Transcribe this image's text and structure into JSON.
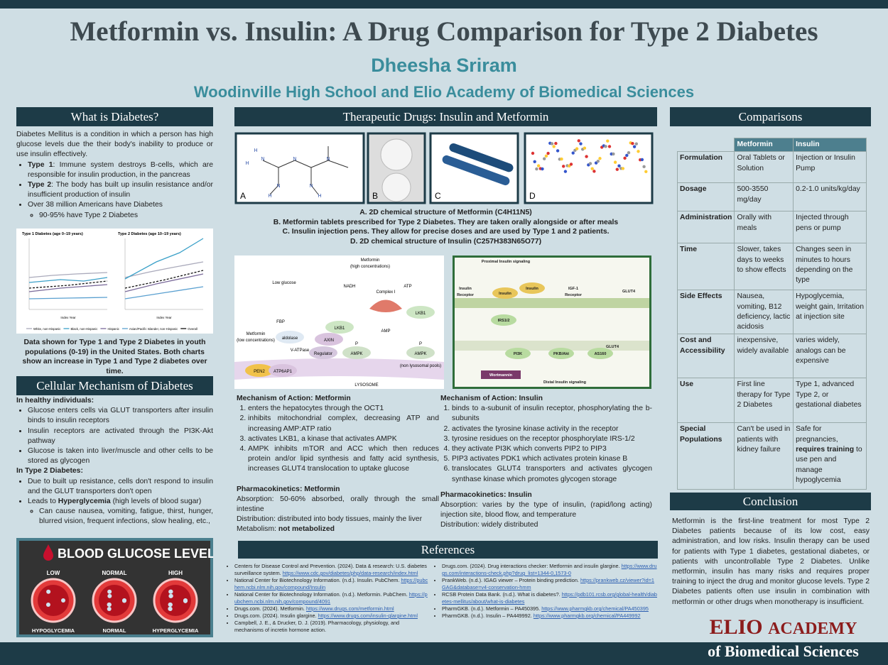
{
  "header": {
    "title": "Metformin vs. Insulin: A Drug Comparison for Type 2 Diabetes",
    "author": "Dheesha Sriram",
    "school": "Woodinville High School and Elio Academy of Biomedical Sciences"
  },
  "diabetes": {
    "heading": "What is Diabetes?",
    "intro": "Diabetes Mellitus is a condition in which a person has high glucose levels due the their body's inability to produce or use insulin effectively.",
    "bullets": [
      [
        {
          "b": "Type 1"
        },
        ": Immune system destroys B-cells, which are responsible for insulin production, in the pancreas"
      ],
      [
        {
          "b": "Type 2"
        },
        ": The body has built up insulin resistance and/or insufficient production of insulin"
      ],
      {
        "t": "Over 38 million Americans have Diabetes",
        "sub": [
          "90-95% have Type 2 Diabetes"
        ]
      }
    ],
    "figure": {
      "titles": [
        "Type 1 Diabetes (age 0–19 years)",
        "Type 2 Diabetes (age 10–19 years)"
      ],
      "x_label": "Index Year",
      "legend": [
        "White, non-Hispanic",
        "Black, non-Hispanic",
        "Hispanic",
        "Asian/Pacific Islander, non-Hispanic",
        "Overall"
      ]
    },
    "caption": "Data shown for Type 1 and Type 2 Diabetes in youth populations (0-19) in the United States. Both charts show an increase in Type 1 and Type 2 diabetes over time."
  },
  "cellular": {
    "heading": "Cellular Mechanism of Diabetes",
    "healthy_heading": "In healthy individuals:",
    "healthy": [
      "Glucose enters cells via GLUT transporters after insulin binds to insulin receptors",
      "Insulin receptors are activated through the PI3K-Akt pathway",
      "Glucose is taken into liver/muscle and other cells to be stored as glycogen"
    ],
    "t2_heading": "In Type 2 Diabetes:",
    "t2": [
      "Due to built up resistance, cells don't respond to insulin and the GLUT transporters don't open",
      {
        "t": [
          "Leads to ",
          {
            "b": "Hyperglycemia"
          },
          " (high levels of blood sugar)"
        ],
        "sub": [
          "Can cause nausea, vomiting, fatigue, thirst, hunger, blurred vision, frequent infections, slow healing, etc.,"
        ]
      }
    ]
  },
  "glucose": {
    "title": "BLOOD GLUCOSE LEVELS",
    "levels": [
      {
        "top": "LOW",
        "bottom": "HYPOGLYCEMIA"
      },
      {
        "top": "NORMAL",
        "bottom": "NORMAL"
      },
      {
        "top": "HIGH",
        "bottom": "HYPERGLYCEMIA"
      }
    ]
  },
  "drugs": {
    "heading": "Therapeutic Drugs: Insulin and Metformin",
    "letters": [
      "A",
      "B",
      "C",
      "D"
    ],
    "atoms": [
      "H",
      "N",
      "N",
      "N",
      "H",
      "N",
      "H",
      "N",
      "H"
    ],
    "captions": [
      "A.  2D chemical structure of Metformin (C4H11N5)",
      "B.  Metformin tablets prescribed for Type 2 Diabetes. They are taken orally alongside or after meals",
      "C.  Insulin injection pens. They allow for precise doses and are used by Type 1 and 2 patients.",
      "D.  2D chemical structure of Insulin (C257H383N65O77)"
    ],
    "metformin_diagram": [
      "Metformin",
      "(high concentrations)",
      "Low glucose",
      "NADH",
      "Complex I",
      "ATP",
      "FBP",
      "LKB1",
      "LKB1",
      "AMP",
      "Metformin",
      "(low concentrations)",
      "aldolase",
      "AXIN",
      "P",
      "P",
      "V-ATPase",
      "Regulator",
      "AMPK",
      "AMPK",
      "(non lysosomal pools)",
      "PEN2",
      "ATP6AP1",
      "LYSOSOME"
    ],
    "insulin_diagram": [
      "Proximal Insulin signaling",
      "Insulin",
      "Receptor",
      "Insulin",
      "Insulin",
      "IGF-1",
      "Receptor",
      "IRS1/2",
      "GLUT4",
      "PI3K",
      "PKB/Akt",
      "AS160",
      "GLUT4",
      "Wortmannin",
      "Distal Insulin signaling"
    ]
  },
  "metformin": {
    "heading": "Mechanism of Action: Metformin",
    "steps": [
      "enters the hepatocytes through the OCT1",
      "inhibits mitochondrial complex, decreasing ATP and increasing AMP:ATP ratio",
      "activates LKB1, a kinase that activates AMPK",
      "AMPK inhibits mTOR and ACC which then reduces protein and/or lipid synthesis and fatty acid synthesis, increases GLUT4 translocation to uptake glucose"
    ],
    "pk_heading": "Pharmacokinetics: Metformin",
    "pk": [
      "Absorption: 50-60% absorbed, orally through the small intestine",
      "Distribution: distributed into body tissues, mainly the liver",
      [
        "Metabolism: ",
        {
          "b": "not metabolized"
        }
      ]
    ]
  },
  "insulin": {
    "heading": "Mechanism of Action: Insulin",
    "steps": [
      "binds to a-subunit of insulin receptor, phosphorylating the b-subunits",
      "activates the tyrosine kinase activity in the receptor",
      "tyrosine residues on the receptor phosphorylate IRS-1/2",
      "they activate PI3K which converts PIP2 to PIP3",
      "PIP3 activates PDK1 which activates protein kinase B",
      "translocates GLUT4 transporters and activates glycogen synthase kinase which promotes glycogen storage"
    ],
    "pk_heading": "Pharmacokinetics: Insulin",
    "pk": [
      "Absorption: varies by the type of insulin, (rapid/long acting) injection site, blood flow, and temperature",
      "Distribution: widely distributed"
    ]
  },
  "references": {
    "heading": "References",
    "left": [
      {
        "text": "Centers for Disease Control and Prevention. (2024). Data & research: U.S. diabetes surveillance system. ",
        "url": "https://www.cdc.gov/diabetes/php/data-research/index.html"
      },
      {
        "text": "National Center for Biotechnology Information. (n.d.). Insulin. PubChem. ",
        "url": "https://pubchem.ncbi.nlm.nih.gov/compound/Insulin"
      },
      {
        "text": "National Center for Biotechnology Information. (n.d.). Metformin. PubChem. ",
        "url": "https://pubchem.ncbi.nlm.nih.gov/compound/4091"
      },
      {
        "text": "Drugs.com. (2024). Metformin. ",
        "url": "https://www.drugs.com/metformin.html"
      },
      {
        "text": "Drugs.com. (2024). Insulin glargine. ",
        "url": "https://www.drugs.com/insulin-glargine.html"
      },
      {
        "text": "Campbell, J. E., & Drucker, D. J. (2019). Pharmacology, physiology, and mechanisms of incretin hormone action."
      }
    ],
    "right": [
      {
        "text": "Drugs.com. (2024). Drug interactions checker: Metformin and insulin glargine. ",
        "url": "https://www.drugs.com/interactions-check.php?drug_list=1344-0,1573-0"
      },
      {
        "text": "PrankWeb. (n.d.). IGAG viewer – Protein binding prediction. ",
        "url": "https://prankweb.cz/viewer?id=1GAG&database=v4-conservation-hmm"
      },
      {
        "text": "RCSB Protein Data Bank. (n.d.). What is diabetes?. ",
        "url": "https://pdb101.rcsb.org/global-health/diabetes-mellitus/about/what-is-diabetes"
      },
      {
        "text": "PharmGKB. (n.d.). Metformin – PA450395. ",
        "url": "https://www.pharmgkb.org/chemical/PA450395"
      },
      {
        "text": "PharmGKB. (n.d.). Insulin – PA449992. ",
        "url": "https://www.pharmgkb.org/chemical/PA449992"
      }
    ]
  },
  "comparisons": {
    "heading": "Comparisons",
    "headers": [
      "Metformin",
      "Insulin"
    ],
    "rows": [
      {
        "label": "Formulation",
        "metformin": "Oral Tablets or Solution",
        "insulin": "Injection or Insulin Pump"
      },
      {
        "label": "Dosage",
        "metformin": "500-3550 mg/day",
        "insulin": "0.2-1.0 units/kg/day"
      },
      {
        "label": "Administration",
        "metformin": "Orally with meals",
        "insulin": "Injected through pens or pump"
      },
      {
        "label": "Time",
        "metformin": "Slower, takes days to weeks to show effects",
        "insulin": "Changes seen in minutes to hours depending on the type"
      },
      {
        "label": "Side Effects",
        "metformin": "Nausea, vomiting, B12 deficiency, lactic acidosis",
        "insulin": "Hypoglycemia, weight gain, Irritation at injection site"
      },
      {
        "label": "Cost and Accessibility",
        "metformin": "inexpensive, widely available",
        "insulin": "varies widely, analogs can be expensive"
      },
      {
        "label": "Use",
        "metformin": "First line therapy for Type 2 Diabetes",
        "insulin": "Type 1, advanced Type 2, or gestational diabetes"
      },
      {
        "label": "Special Populations",
        "metformin": "Can't be used in patients with kidney failure",
        "insulin": [
          "Safe for pregnancies, ",
          {
            "b": "requires training"
          },
          " to use pen and manage hypoglycemia"
        ]
      }
    ]
  },
  "conclusion": {
    "heading": "Conclusion",
    "text": "Metformin is the first-line treatment for most Type 2 Diabetes patients because of its low cost, easy administration, and low risks. Insulin therapy can be used for patients with Type 1 diabetes, gestational diabetes, or patients with uncontrollable Type 2 Diabetes. Unlike metformin, insulin has many risks and requires proper training to inject the drug and monitor glucose levels. Type 2 Diabetes patients often use insulin in combination with metformin or other drugs when monotherapy is insufficient."
  },
  "logo": {
    "name": "ELIO",
    "academy": "ACADEMY",
    "subtitle": "of Biomedical Sciences"
  }
}
